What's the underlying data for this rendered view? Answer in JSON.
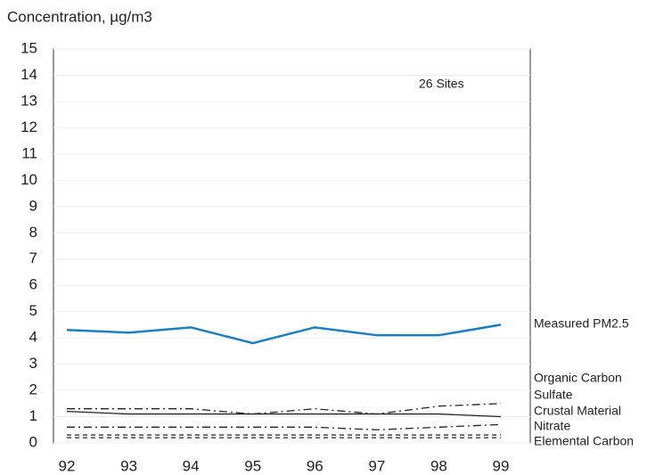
{
  "chart_data": {
    "type": "line",
    "ylabel": "Concentration, µg/m3",
    "annotation": "26 Sites",
    "categories": [
      "92",
      "93",
      "94",
      "95",
      "96",
      "97",
      "98",
      "99"
    ],
    "ylim": [
      0,
      15
    ],
    "yticks": [
      0,
      1,
      2,
      3,
      4,
      5,
      6,
      7,
      8,
      9,
      10,
      11,
      12,
      13,
      14,
      15
    ],
    "grid": true,
    "series": [
      {
        "name": "Measured PM2.5",
        "color": "#1a7fc1",
        "style": "solid",
        "values": [
          4.3,
          4.2,
          4.4,
          3.8,
          4.4,
          4.1,
          4.1,
          4.5
        ]
      },
      {
        "name": "Organic Carbon",
        "color": "#222222",
        "style": "dashdot",
        "values": [
          1.3,
          1.3,
          1.3,
          1.1,
          1.3,
          1.1,
          1.4,
          1.5
        ]
      },
      {
        "name": "Sulfate",
        "color": "#222222",
        "style": "solid",
        "values": [
          1.2,
          1.1,
          1.1,
          1.1,
          1.1,
          1.1,
          1.1,
          1.0
        ]
      },
      {
        "name": "Crustal Material",
        "color": "#222222",
        "style": "dashdot",
        "values": [
          0.6,
          0.6,
          0.6,
          0.6,
          0.6,
          0.5,
          0.6,
          0.7
        ]
      },
      {
        "name": "Nitrate",
        "color": "#222222",
        "style": "dashed",
        "values": [
          0.3,
          0.3,
          0.3,
          0.3,
          0.3,
          0.3,
          0.3,
          0.3
        ]
      },
      {
        "name": "Elemental Carbon",
        "color": "#222222",
        "style": "dashed",
        "values": [
          0.2,
          0.2,
          0.2,
          0.2,
          0.2,
          0.2,
          0.2,
          0.2
        ]
      }
    ]
  }
}
